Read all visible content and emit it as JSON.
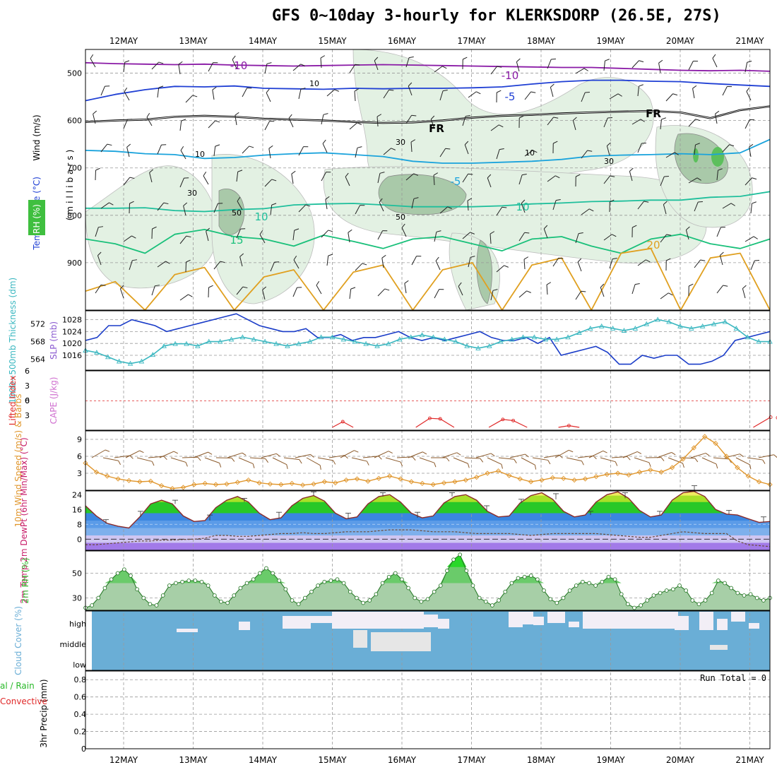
{
  "title": "GFS 0~10day 3-hourly for KLERKSDORP (26.5E, 27S)",
  "dates": [
    "12MAY",
    "13MAY",
    "14MAY",
    "15MAY",
    "16MAY",
    "17MAY",
    "18MAY",
    "19MAY",
    "20MAY",
    "21MAY"
  ],
  "colors": {
    "grid": "#999999",
    "rh_green": "#7ec97e",
    "thickness": "#3ab7c0",
    "slp": "#1a3cc8",
    "wind10": "#e0962c",
    "barb": "#8b5a2b",
    "rh2m": "#34c034",
    "cloud": "#6aaed6",
    "cloud_gap": "#f2eef6"
  },
  "chart_data": [
    {
      "panel": "upper-air",
      "type": "contour",
      "ylabel_parts": [
        "Wind (m/s)",
        "Temperature (°C)",
        "RH (%)",
        "(millibars)"
      ],
      "y_ticks": [
        500,
        600,
        700,
        800,
        900
      ],
      "ylim": [
        1000,
        450
      ],
      "temperature_contours": [
        {
          "label": "-10",
          "value": -10,
          "color": "#8a1aa6",
          "p": [
            478,
            480,
            481,
            482,
            481,
            483,
            484,
            485,
            484,
            483,
            482,
            483,
            484,
            485,
            486,
            487,
            488,
            488,
            490,
            492,
            494,
            495,
            494,
            496
          ]
        },
        {
          "label": "-5",
          "value": -5,
          "color": "#1f3fd4",
          "p": [
            558,
            545,
            535,
            528,
            529,
            527,
            532,
            533,
            534,
            532,
            533,
            532,
            532,
            531,
            529,
            523,
            518,
            515,
            515,
            517,
            518,
            522,
            525,
            528
          ]
        },
        {
          "label": "FR",
          "value": 0,
          "color": "#000000",
          "p": [
            603,
            600,
            598,
            592,
            590,
            592,
            596,
            598,
            600,
            603,
            605,
            604,
            600,
            594,
            590,
            588,
            585,
            583,
            581,
            580,
            583,
            595,
            578,
            570
          ]
        },
        {
          "label": "-5",
          "value": -5,
          "color": "#1aa3dc",
          "p": [
            663,
            665,
            670,
            672,
            680,
            678,
            673,
            670,
            668,
            672,
            676,
            686,
            690,
            690,
            688,
            686,
            682,
            675,
            673,
            672,
            670,
            672,
            668,
            640
          ]
        },
        {
          "label": "10",
          "value": 10,
          "color": "#1fbf9c",
          "p": [
            785,
            785,
            784,
            790,
            792,
            788,
            786,
            778,
            776,
            775,
            778,
            782,
            782,
            782,
            780,
            776,
            774,
            771,
            770,
            768,
            768,
            762,
            760,
            750
          ]
        },
        {
          "label": "15",
          "value": 15,
          "color": "#19c07a",
          "p": [
            850,
            860,
            880,
            840,
            830,
            845,
            850,
            865,
            842,
            855,
            870,
            850,
            845,
            860,
            875,
            850,
            845,
            865,
            880,
            850,
            840,
            860,
            870,
            850
          ]
        },
        {
          "label": "20",
          "value": 20,
          "color": "#e0a020",
          "p": [
            960,
            940,
            1000,
            925,
            910,
            1000,
            930,
            915,
            1000,
            920,
            905,
            1000,
            915,
            900,
            1000,
            905,
            890,
            1000,
            880,
            870,
            1000,
            890,
            880,
            1000
          ]
        }
      ],
      "rh_contour_labels": [
        "10",
        "30",
        "50"
      ],
      "freezing_label": "FR"
    },
    {
      "panel": "thickness-slp",
      "type": "line",
      "ylabel_left": "1000~500mb Thickness (dm)",
      "ylabel_right": "SLP (mb)",
      "y_ticks_left": [
        564,
        568,
        572
      ],
      "y_ticks_right": [
        1016,
        1020,
        1024,
        1028
      ],
      "series": [
        {
          "name": "SLP (mb)",
          "color": "#1a3cc8",
          "values": [
            1021,
            1022,
            1026,
            1026,
            1028,
            1027,
            1026,
            1024,
            1025,
            1026,
            1027,
            1028,
            1029,
            1030,
            1028,
            1026,
            1025,
            1024,
            1024,
            1025,
            1022,
            1022,
            1023,
            1021,
            1022,
            1022,
            1023,
            1024,
            1022,
            1021,
            1022,
            1021,
            1022,
            1023,
            1024,
            1022,
            1021,
            1021,
            1022,
            1020,
            1022,
            1016,
            1017,
            1018,
            1019,
            1017,
            1013,
            1013,
            1016,
            1015,
            1016,
            1016,
            1013,
            1013,
            1014,
            1016,
            1021,
            1022,
            1023,
            1024
          ]
        },
        {
          "name": "Thickness (dm)",
          "color": "#3ab7c0",
          "values": [
            566,
            565.5,
            564.5,
            563.5,
            563,
            563.5,
            565,
            567,
            567.5,
            567.5,
            567,
            568,
            568,
            568.5,
            569,
            568.5,
            568,
            567.5,
            567,
            567.5,
            568,
            569,
            569,
            568.5,
            568,
            567.5,
            567,
            567.5,
            568.5,
            569,
            569.5,
            569,
            568.5,
            568,
            567,
            566.5,
            567,
            568,
            568.5,
            569,
            569,
            568.5,
            568.5,
            569,
            570,
            571,
            571.5,
            571,
            570.5,
            571,
            572,
            573,
            572.5,
            571.5,
            571,
            571.5,
            572,
            572.5,
            571,
            569,
            568,
            568
          ]
        }
      ]
    },
    {
      "panel": "li-cape",
      "type": "line",
      "ylabel_left": "Lifted Index",
      "ylabel_right": "CAPE (J/kg)",
      "y_ticks": [
        6,
        3,
        0,
        -3,
        -6
      ],
      "ylim": [
        6,
        -6
      ],
      "series": [
        {
          "name": "Lifted Index",
          "color": "#e02828",
          "points": [
            [
              3.6,
              5.5
            ],
            [
              3.7,
              4.8
            ],
            [
              3.8,
              5.5
            ],
            [
              4.8,
              4.2
            ],
            [
              4.95,
              3.5
            ],
            [
              5.1,
              3.7
            ],
            [
              5.25,
              4.5
            ],
            [
              5.85,
              4.4
            ],
            [
              6.0,
              3.6
            ],
            [
              6.15,
              4.0
            ],
            [
              6.3,
              5.0
            ],
            [
              6.85,
              5.5
            ],
            [
              6.95,
              5.5
            ],
            [
              7.1,
              5.6
            ],
            [
              9.7,
              4.5
            ],
            [
              9.85,
              3.3
            ],
            [
              9.95,
              3.5
            ],
            [
              10.05,
              5.5
            ]
          ]
        }
      ]
    },
    {
      "panel": "wind-10m",
      "type": "line",
      "ylabel": "10m Wind Speed (m/s) & Barbs",
      "y_ticks": [
        3,
        6,
        9
      ],
      "ylim": [
        0,
        10.5
      ],
      "series": [
        {
          "name": "10m Wind Speed",
          "color": "#e0962c",
          "values": [
            4.8,
            3.2,
            2.5,
            2.0,
            1.7,
            1.5,
            1.6,
            0.8,
            0.3,
            0.5,
            1.0,
            1.2,
            1.0,
            1.1,
            1.4,
            1.8,
            1.3,
            1.1,
            1.0,
            1.2,
            0.9,
            1.1,
            1.5,
            1.3,
            1.8,
            2.0,
            1.6,
            2.1,
            2.5,
            2.0,
            1.5,
            1.2,
            1.0,
            1.3,
            1.5,
            1.8,
            2.3,
            3.0,
            3.4,
            2.6,
            2.0,
            1.5,
            1.8,
            2.2,
            2.1,
            1.8,
            2.0,
            2.4,
            2.8,
            3.0,
            2.7,
            3.2,
            3.6,
            3.2,
            4.0,
            5.5,
            7.5,
            9.5,
            8.3,
            6.0,
            4.0,
            2.5,
            1.5,
            1.0
          ]
        }
      ]
    },
    {
      "panel": "temp-dewpt",
      "type": "area",
      "ylabel": "2m Temp 2m DewPt (6hr Min/Max) (°C)",
      "y_ticks": [
        0,
        8,
        16,
        24
      ],
      "ylim": [
        -6,
        26
      ],
      "series": [
        {
          "name": "2m Temp",
          "color": "#8b2a2a",
          "values": [
            18.0,
            12.5,
            8.5,
            7.0,
            6.0,
            12.0,
            19.0,
            21.0,
            19.0,
            12.5,
            9.5,
            10.0,
            17.0,
            21.0,
            23.0,
            20.0,
            14.0,
            10.5,
            11.5,
            18.0,
            22.0,
            23.5,
            20.5,
            14.0,
            11.0,
            12.0,
            19.0,
            23.0,
            24.0,
            20.0,
            14.0,
            11.5,
            12.5,
            19.5,
            23.0,
            24.0,
            21.0,
            15.0,
            12.0,
            12.5,
            19.5,
            23.5,
            25.0,
            21.5,
            15.0,
            12.0,
            13.0,
            20.0,
            24.0,
            25.5,
            22.0,
            15.5,
            12.0,
            13.0,
            21.0,
            25.0,
            25.8,
            23.0,
            16.0,
            13.5,
            13.0,
            11.0,
            9.0,
            9.5
          ]
        },
        {
          "name": "2m DewPt",
          "color": "#6a4a3a",
          "values": [
            -3.0,
            -3.0,
            -2.5,
            -2.0,
            -1.5,
            -1.0,
            -1.0,
            -0.5,
            -0.5,
            -0.2,
            0.0,
            0.5,
            2.0,
            2.0,
            1.5,
            1.5,
            2.0,
            2.5,
            3.0,
            3.0,
            3.5,
            3.0,
            3.0,
            3.5,
            4.0,
            4.0,
            4.0,
            4.5,
            5.0,
            5.0,
            5.0,
            4.5,
            4.0,
            4.0,
            4.0,
            3.5,
            3.0,
            3.0,
            3.0,
            3.0,
            2.5,
            2.0,
            2.5,
            3.0,
            3.0,
            3.0,
            3.0,
            3.0,
            2.5,
            2.0,
            1.5,
            1.0,
            1.0,
            2.0,
            3.0,
            4.0,
            3.5,
            3.0,
            3.0,
            3.0,
            -1.0,
            -3.0,
            -3.5,
            -4.0
          ]
        }
      ]
    },
    {
      "panel": "rh-2m",
      "type": "area",
      "ylabel": "2m RH (%)",
      "y_ticks": [
        30,
        50
      ],
      "ylim": [
        20,
        68
      ],
      "series": [
        {
          "name": "2m RH",
          "color": "#34c034",
          "values": [
            22,
            24,
            30,
            38,
            45,
            50,
            53,
            48,
            37,
            30,
            25,
            24,
            32,
            40,
            42,
            43,
            44,
            44,
            43,
            40,
            32,
            27,
            26,
            32,
            38,
            42,
            45,
            50,
            54,
            50,
            44,
            37,
            28,
            25,
            30,
            35,
            40,
            43,
            44,
            45,
            42,
            35,
            30,
            26,
            28,
            33,
            42,
            47,
            50,
            45,
            38,
            30,
            27,
            29,
            35,
            40,
            52,
            61,
            65,
            52,
            40,
            30,
            27,
            24,
            28,
            35,
            42,
            46,
            47,
            48,
            45,
            36,
            29,
            26,
            30,
            36,
            40,
            43,
            42,
            40,
            43,
            47,
            45,
            33,
            25,
            22,
            24,
            28,
            32,
            34,
            36,
            37,
            40,
            36,
            28,
            25,
            28,
            34,
            44,
            42,
            38,
            34,
            32,
            33,
            30,
            28,
            30
          ]
        }
      ]
    },
    {
      "panel": "cloud-cover",
      "type": "heatmap",
      "ylabel": "Cloud Cover (%)",
      "levels": [
        "high",
        "middle",
        "low"
      ]
    },
    {
      "panel": "precip",
      "type": "bar",
      "ylabel": "3hr Precip (mm)",
      "legend_left": "al / Rain",
      "legend_left2": "Convective",
      "y_ticks": [
        "0",
        "0.2",
        "0.4",
        "0.6",
        "0.8"
      ],
      "ylim": [
        0,
        0.9
      ],
      "values": [],
      "run_total": "Run Total = 0"
    }
  ]
}
